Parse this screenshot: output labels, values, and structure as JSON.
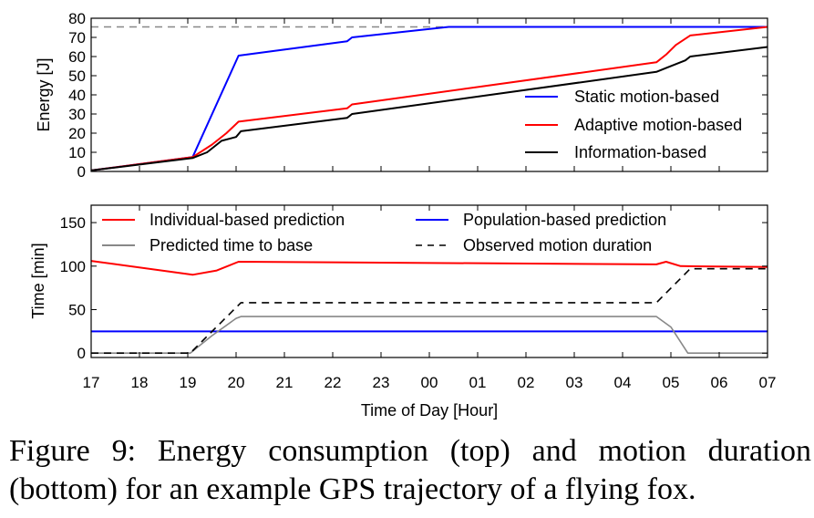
{
  "chart_data": [
    {
      "type": "line",
      "panel": "top",
      "title": "",
      "xlabel": "",
      "ylabel": "Energy [J]",
      "xlim": [
        17,
        31
      ],
      "ylim": [
        0,
        80
      ],
      "yticks": [
        "0",
        "10",
        "20",
        "30",
        "40",
        "50",
        "60",
        "70",
        "80"
      ],
      "grid": false,
      "legend_position": "lower-right",
      "reference_line": {
        "y": 75.5,
        "style": "dashed",
        "color": "#888888"
      },
      "series": [
        {
          "name": "Static motion-based",
          "color": "#0000ff",
          "x": [
            17.0,
            19.1,
            20.05,
            22.3,
            22.4,
            24.4,
            31.0
          ],
          "y": [
            0.5,
            7.5,
            60.5,
            68,
            70,
            75.5,
            75.5
          ]
        },
        {
          "name": "Adaptive motion-based",
          "color": "#ff0000",
          "x": [
            17.0,
            19.1,
            19.5,
            19.8,
            20.05,
            22.3,
            22.4,
            28.7,
            28.9,
            29.1,
            29.4,
            31.0
          ],
          "y": [
            0.5,
            7.5,
            14,
            20,
            26,
            33,
            35,
            57,
            61,
            66,
            71,
            75.5
          ]
        },
        {
          "name": "Information-based",
          "color": "#000000",
          "x": [
            17.0,
            19.1,
            19.4,
            19.7,
            20.0,
            20.1,
            22.3,
            22.4,
            28.7,
            28.9,
            29.3,
            29.4,
            31.0
          ],
          "y": [
            0.5,
            7,
            10,
            16,
            18,
            21,
            28,
            30,
            52,
            54,
            58,
            60,
            65
          ]
        }
      ]
    },
    {
      "type": "line",
      "panel": "bottom",
      "title": "",
      "xlabel": "Time of Day [Hour]",
      "ylabel": "Time [min]",
      "xlim": [
        17,
        31
      ],
      "ylim": [
        -5,
        170
      ],
      "yticks": [
        "0",
        "50",
        "100",
        "150"
      ],
      "xticks": [
        "17",
        "18",
        "19",
        "20",
        "21",
        "22",
        "23",
        "00",
        "01",
        "02",
        "03",
        "04",
        "05",
        "06",
        "07"
      ],
      "grid": false,
      "legend_position": "top",
      "series": [
        {
          "name": "Individual-based prediction",
          "color": "#ff0000",
          "style": "solid",
          "x": [
            17.0,
            19.1,
            19.6,
            20.05,
            28.7,
            28.9,
            29.2,
            31.0
          ],
          "y": [
            106,
            90,
            95,
            105,
            102,
            105,
            100,
            99
          ]
        },
        {
          "name": "Population-based prediction",
          "color": "#0000ff",
          "style": "solid",
          "x": [
            17.0,
            31.0
          ],
          "y": [
            25,
            25
          ]
        },
        {
          "name": "Predicted time to base",
          "color": "#888888",
          "style": "solid",
          "x": [
            17.0,
            19.05,
            19.5,
            20.0,
            20.1,
            28.7,
            29.0,
            29.35,
            31.0
          ],
          "y": [
            0,
            0,
            20,
            40,
            42,
            42,
            30,
            0,
            0
          ]
        },
        {
          "name": "Observed motion duration",
          "color": "#000000",
          "style": "dashed",
          "x": [
            17.0,
            19.05,
            20.1,
            28.7,
            29.4,
            31.0
          ],
          "y": [
            0,
            0,
            58,
            58,
            97,
            97
          ]
        }
      ]
    }
  ],
  "caption": {
    "line1": "Figure 9:  Energy consumption (top) and motion duration",
    "line2": "(bottom) for an example GPS trajectory of a flying fox."
  }
}
